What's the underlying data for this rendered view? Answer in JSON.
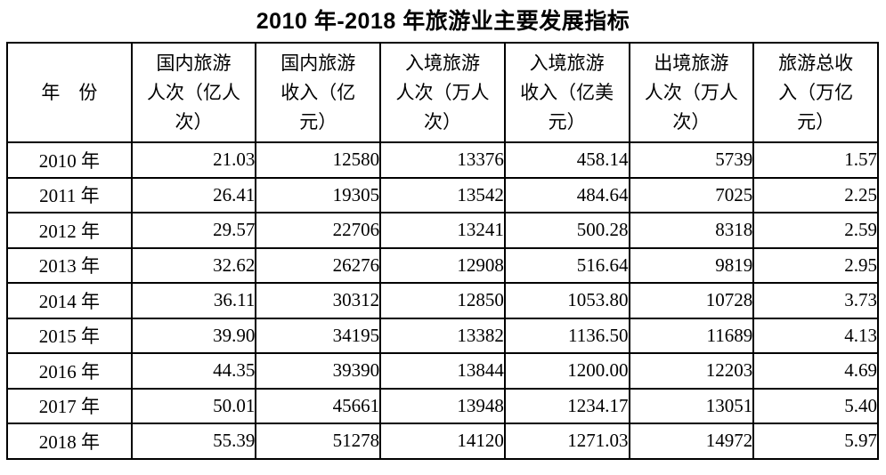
{
  "page": {
    "title": "2010 年-2018 年旅游业主要发展指标"
  },
  "table": {
    "columns": [
      {
        "label": "年　份"
      },
      {
        "label": "国内旅游\n人次（亿人\n次）"
      },
      {
        "label": "国内旅游\n收入（亿\n元）"
      },
      {
        "label": "入境旅游\n人次（万人\n次）"
      },
      {
        "label": "入境旅游\n收入（亿美\n元）"
      },
      {
        "label": "出境旅游\n人次（万人\n次）"
      },
      {
        "label": "旅游总收\n入（万亿\n元）"
      }
    ],
    "rows": [
      {
        "cells": [
          "2010 年",
          "21.03",
          "12580",
          "13376",
          "458.14",
          "5739",
          "1.57"
        ]
      },
      {
        "cells": [
          "2011 年",
          "26.41",
          "19305",
          "13542",
          "484.64",
          "7025",
          "2.25"
        ]
      },
      {
        "cells": [
          "2012 年",
          "29.57",
          "22706",
          "13241",
          "500.28",
          "8318",
          "2.59"
        ]
      },
      {
        "cells": [
          "2013 年",
          "32.62",
          "26276",
          "12908",
          "516.64",
          "9819",
          "2.95"
        ]
      },
      {
        "cells": [
          "2014 年",
          "36.11",
          "30312",
          "12850",
          "1053.80",
          "10728",
          "3.73"
        ]
      },
      {
        "cells": [
          "2015 年",
          "39.90",
          "34195",
          "13382",
          "1136.50",
          "11689",
          "4.13"
        ]
      },
      {
        "cells": [
          "2016 年",
          "44.35",
          "39390",
          "13844",
          "1200.00",
          "12203",
          "4.69"
        ]
      },
      {
        "cells": [
          "2017 年",
          "50.01",
          "45661",
          "13948",
          "1234.17",
          "13051",
          "5.40"
        ]
      },
      {
        "cells": [
          "2018 年",
          "55.39",
          "51278",
          "14120",
          "1271.03",
          "14972",
          "5.97"
        ]
      }
    ]
  },
  "chart_data": {
    "type": "table",
    "title": "2010 年-2018 年旅游业主要发展指标",
    "categories": [
      "2010 年",
      "2011 年",
      "2012 年",
      "2013 年",
      "2014 年",
      "2015 年",
      "2016 年",
      "2017 年",
      "2018 年"
    ],
    "series": [
      {
        "name": "国内旅游人次（亿人次）",
        "values": [
          21.03,
          26.41,
          29.57,
          32.62,
          36.11,
          39.9,
          44.35,
          50.01,
          55.39
        ]
      },
      {
        "name": "国内旅游收入（亿元）",
        "values": [
          12580,
          19305,
          22706,
          26276,
          30312,
          34195,
          39390,
          45661,
          51278
        ]
      },
      {
        "name": "入境旅游人次（万人次）",
        "values": [
          13376,
          13542,
          13241,
          12908,
          12850,
          13382,
          13844,
          13948,
          14120
        ]
      },
      {
        "name": "入境旅游收入（亿美元）",
        "values": [
          458.14,
          484.64,
          500.28,
          516.64,
          1053.8,
          1136.5,
          1200.0,
          1234.17,
          1271.03
        ]
      },
      {
        "name": "出境旅游人次（万人次）",
        "values": [
          5739,
          7025,
          8318,
          9819,
          10728,
          11689,
          12203,
          13051,
          14972
        ]
      },
      {
        "name": "旅游总收入（万亿元）",
        "values": [
          1.57,
          2.25,
          2.59,
          2.95,
          3.73,
          4.13,
          4.69,
          5.4,
          5.97
        ]
      }
    ]
  }
}
